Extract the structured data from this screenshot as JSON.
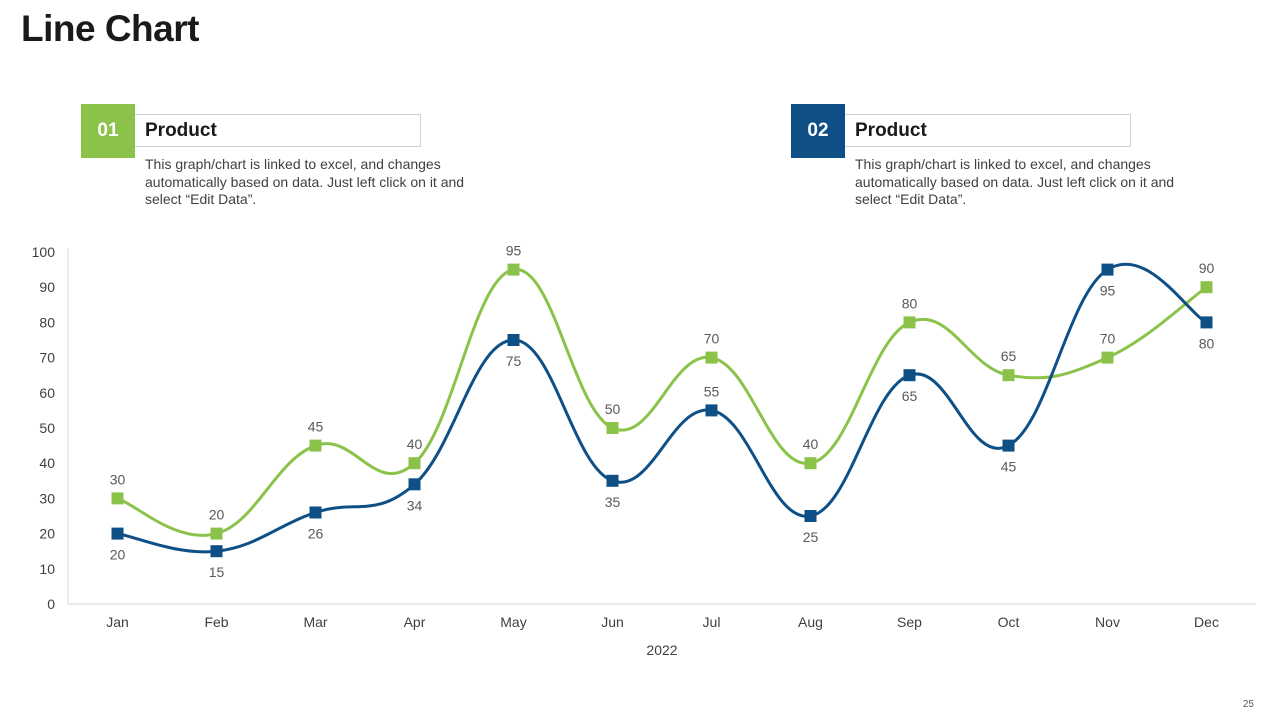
{
  "page": {
    "title": "Line Chart",
    "page_number": "25"
  },
  "legend": [
    {
      "badge": "01",
      "heading": "Product",
      "description": "This graph/chart is linked to excel, and changes automatically based on data. Just left click on it and select “Edit Data”."
    },
    {
      "badge": "02",
      "heading": "Product",
      "description": "This graph/chart is linked to excel, and changes automatically based on data. Just left click on it and select “Edit Data”."
    }
  ],
  "chart_data": {
    "type": "line",
    "title": "",
    "xlabel": "2022",
    "ylabel": "",
    "ylim": [
      0,
      100
    ],
    "yticks": [
      0,
      10,
      20,
      30,
      40,
      50,
      60,
      70,
      80,
      90,
      100
    ],
    "grid": false,
    "smooth": true,
    "categories": [
      "Jan",
      "Feb",
      "Mar",
      "Apr",
      "May",
      "Jun",
      "Jul",
      "Aug",
      "Sep",
      "Oct",
      "Nov",
      "Dec"
    ],
    "series": [
      {
        "color": "#8bc34a",
        "values": [
          30,
          20,
          45,
          40,
          95,
          50,
          70,
          40,
          80,
          65,
          70,
          90
        ],
        "label_position": [
          "above",
          "above",
          "above",
          "above",
          "above",
          "above",
          "above",
          "above",
          "above",
          "above",
          "above",
          "above"
        ]
      },
      {
        "color": "#0e4f86",
        "values": [
          20,
          15,
          26,
          34,
          75,
          35,
          55,
          25,
          65,
          45,
          95,
          80
        ],
        "label_position": [
          "below",
          "below",
          "below",
          "below",
          "below",
          "below",
          "above",
          "below",
          "below",
          "below",
          "below",
          "below"
        ]
      }
    ]
  }
}
